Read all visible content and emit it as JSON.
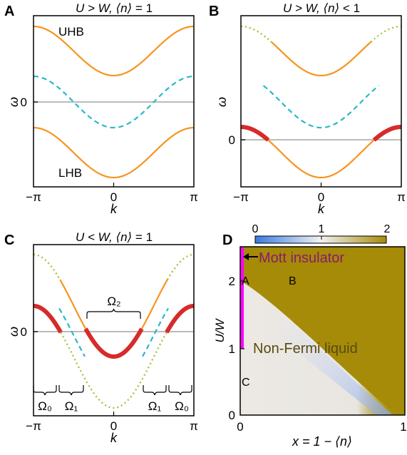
{
  "panels": {
    "A": {
      "letter": "A",
      "title_pre": "U > W, ",
      "title_n": "⟨n⟩",
      "title_post": " = 1",
      "ylabel": "ω",
      "ytick_zero": "0",
      "xtick_left": "−π",
      "xtick_mid": "0",
      "xtick_right": "π",
      "xlabel": "k",
      "label_uhb": "UHB",
      "label_lhb": "LHB"
    },
    "B": {
      "letter": "B",
      "title_pre": "U > W, ",
      "title_n": "⟨n⟩",
      "title_post": " < 1",
      "ylabel": "ω",
      "ytick_zero": "0",
      "xtick_left": "−π",
      "xtick_mid": "0",
      "xtick_right": "π",
      "xlabel": "k"
    },
    "C": {
      "letter": "C",
      "title_pre": "U < W, ",
      "title_n": "⟨n⟩",
      "title_post": " = 1",
      "ylabel": "ω",
      "ytick_zero": "0",
      "xtick_left": "−π",
      "xtick_mid": "0",
      "xtick_right": "π",
      "xlabel": "k",
      "omega2": "Ω₂",
      "omega0_left": "Ω₀",
      "omega1_left": "Ω₁",
      "omega1_right": "Ω₁",
      "omega0_right": "Ω₀"
    },
    "D": {
      "letter": "D",
      "colorbar_ticks": [
        "0",
        "1",
        "2"
      ],
      "mott_label": "Mott insulator",
      "nfl_label": "Non-Fermi liquid",
      "point_a": "A",
      "point_b": "B",
      "point_c": "C",
      "ylabel": "U/W",
      "yticks": [
        "0",
        "1",
        "2"
      ],
      "xticks": [
        "0",
        "1"
      ],
      "xlabel_pre": "x = 1 − ",
      "xlabel_n": "⟨n⟩"
    }
  },
  "colors": {
    "orange": "#f7941d",
    "cyan": "#29b8c8",
    "red": "#d62b2b",
    "olive_dot": "#a8c13a",
    "zero_line": "#bbbbbb",
    "mott": "#ff00ff",
    "mott_text": "#8b1a6e",
    "nfl_fill": "#a58b07",
    "nfl_text": "#5a4a10",
    "colorbar_blue": "#3a7be0",
    "colorbar_gold": "#a58b07"
  }
}
